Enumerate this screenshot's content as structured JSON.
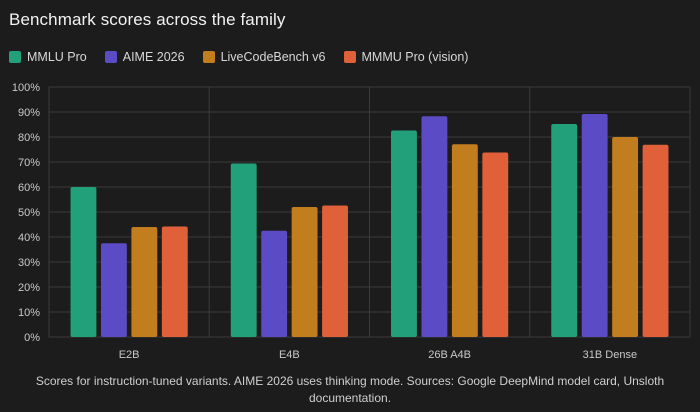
{
  "chart_data": {
    "type": "bar",
    "title": "Benchmark scores across the family",
    "categories": [
      "E2B",
      "E4B",
      "26B A4B",
      "31B Dense"
    ],
    "series": [
      {
        "name": "MMLU Pro",
        "color": "#22a07a",
        "values": [
          60,
          69.4,
          82.6,
          85.2
        ]
      },
      {
        "name": "AIME 2026",
        "color": "#5b4bc4",
        "values": [
          37.5,
          42.5,
          88.3,
          89.2
        ]
      },
      {
        "name": "LiveCodeBench v6",
        "color": "#c27e1e",
        "values": [
          44,
          52,
          77.1,
          80
        ]
      },
      {
        "name": "MMMU Pro (vision)",
        "color": "#e0603a",
        "values": [
          44.2,
          52.6,
          73.8,
          76.9
        ]
      }
    ],
    "ylim": [
      0,
      100
    ],
    "yticks": [
      "0%",
      "10%",
      "20%",
      "30%",
      "40%",
      "50%",
      "60%",
      "70%",
      "80%",
      "90%",
      "100%"
    ],
    "xlabel": "",
    "ylabel": "",
    "grid": true,
    "legend_position": "top-left"
  },
  "caption": "Scores for instruction-tuned variants. AIME 2026 uses thinking mode. Sources: Google DeepMind model card, Unsloth documentation."
}
